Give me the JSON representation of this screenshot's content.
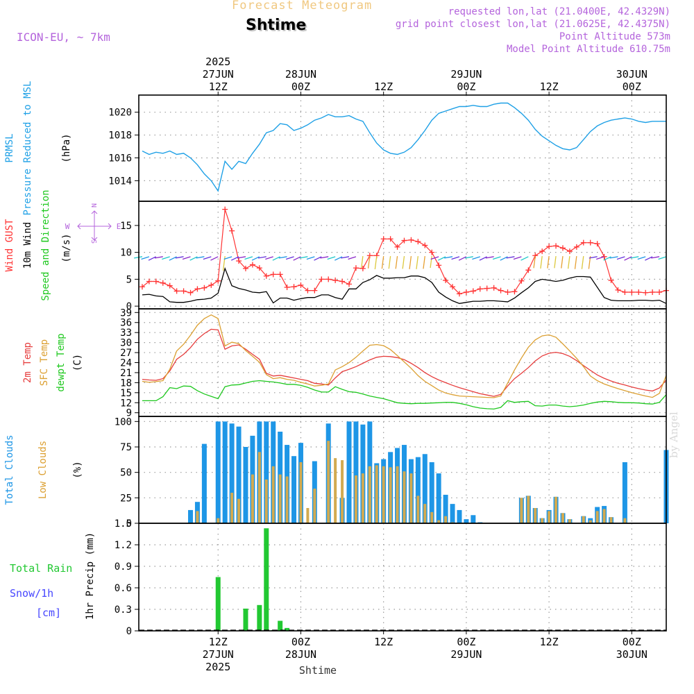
{
  "header": {
    "title": "Forecast Meteogram",
    "location": "Shtime",
    "model": "ICON-EU, ~ 7km",
    "requested": "requested lon,lat (21.0400E, 42.4329N)",
    "grid_point": "grid point closest lon,lat (21.0625E, 42.4375N)",
    "point_altitude": "Point Altitude 573m",
    "model_altitude": "Model Point Altitude 610.75m",
    "watermark": "by Angel"
  },
  "time_axis": {
    "top_ticks": [
      {
        "t": 1,
        "lines": [
          "2025",
          "27JUN",
          "12Z"
        ]
      },
      {
        "t": 13,
        "lines": [
          "28JUN",
          "00Z"
        ]
      },
      {
        "t": 25,
        "lines": [
          "12Z"
        ]
      },
      {
        "t": 37,
        "lines": [
          "29JUN",
          "00Z"
        ]
      },
      {
        "t": 49,
        "lines": [
          "12Z"
        ]
      },
      {
        "t": 61,
        "lines": [
          "30JUN",
          "00Z"
        ]
      }
    ],
    "bottom_ticks": [
      {
        "t": 1,
        "lines": [
          "12Z",
          "27JUN",
          "2025"
        ]
      },
      {
        "t": 13,
        "lines": [
          "00Z",
          "28JUN"
        ]
      },
      {
        "t": 25,
        "lines": [
          "12Z"
        ]
      },
      {
        "t": 37,
        "lines": [
          "00Z",
          "29JUN"
        ]
      },
      {
        "t": 49,
        "lines": [
          "12Z"
        ]
      },
      {
        "t": 61,
        "lines": [
          "00Z",
          "30JUN"
        ]
      }
    ],
    "bottom_label": "Shtime",
    "range_hours": [
      -10.5,
      66
    ]
  },
  "colors": {
    "pressure": "#1ea0e6",
    "gust": "#ff3232",
    "wind": "#000000",
    "temp2m": "#e63c3c",
    "sfc_temp": "#dca032",
    "dewpt": "#1ec81e",
    "total_clouds": "#1e96e6",
    "low_clouds": "#d2aa50",
    "rain": "#22c832",
    "snow": "#4646ff",
    "compass": "#b464dc"
  },
  "chart_data": [
    {
      "type": "line",
      "panel": "pressure",
      "labels": [
        "PRMSL",
        "Pressure Reduced to MSL"
      ],
      "unit": "(hPa)",
      "ylim": [
        1012.2,
        1021.5
      ],
      "yticks": [
        1014,
        1016,
        1018,
        1020
      ],
      "x": [
        -10,
        -9,
        -8,
        -7,
        -6,
        -5,
        -4,
        -3,
        -2,
        -1,
        0,
        1,
        2,
        3,
        4,
        5,
        6,
        7,
        8,
        9,
        10,
        11,
        12,
        13,
        14,
        15,
        16,
        17,
        18,
        19,
        20,
        21,
        22,
        23,
        24,
        25,
        26,
        27,
        28,
        29,
        30,
        31,
        32,
        33,
        34,
        35,
        36,
        37,
        38,
        39,
        40,
        41,
        42,
        43,
        44,
        45,
        46,
        47,
        48,
        49,
        50,
        51,
        52,
        53,
        54,
        55,
        56,
        57,
        58,
        59,
        60,
        61,
        62,
        63,
        64,
        65,
        66
      ],
      "series": [
        {
          "name": "PRMSL",
          "values": [
            1016.6,
            1016.3,
            1016.5,
            1016.4,
            1016.6,
            1016.3,
            1016.4,
            1016.0,
            1015.4,
            1014.6,
            1014.0,
            1013.1,
            1015.7,
            1015.0,
            1015.7,
            1015.5,
            1016.4,
            1017.2,
            1018.2,
            1018.4,
            1019.0,
            1018.9,
            1018.4,
            1018.6,
            1018.9,
            1019.3,
            1019.5,
            1019.8,
            1019.6,
            1019.6,
            1019.7,
            1019.4,
            1019.2,
            1018.2,
            1017.3,
            1016.7,
            1016.4,
            1016.3,
            1016.5,
            1016.9,
            1017.6,
            1018.4,
            1019.3,
            1019.9,
            1020.1,
            1020.3,
            1020.5,
            1020.5,
            1020.6,
            1020.5,
            1020.5,
            1020.7,
            1020.8,
            1020.8,
            1020.4,
            1019.9,
            1019.3,
            1018.5,
            1017.9,
            1017.5,
            1017.1,
            1016.8,
            1016.7,
            1016.9,
            1017.6,
            1018.3,
            1018.8,
            1019.1,
            1019.3,
            1019.4,
            1019.5,
            1019.4,
            1019.2,
            1019.1,
            1019.2,
            1019.2,
            1019.2
          ]
        }
      ]
    },
    {
      "type": "line",
      "panel": "wind",
      "labels": [
        "Wind GUST",
        "10m Wind",
        "Speed and Direction"
      ],
      "unit": "(m/s)",
      "ylim": [
        -0.5,
        19.5
      ],
      "yticks": [
        0,
        5,
        10,
        15
      ],
      "compass": [
        "N",
        "S",
        "W",
        "E"
      ],
      "x": [
        -10,
        -9,
        -8,
        -7,
        -6,
        -5,
        -4,
        -3,
        -2,
        -1,
        0,
        1,
        2,
        3,
        4,
        5,
        6,
        7,
        8,
        9,
        10,
        11,
        12,
        13,
        14,
        15,
        16,
        17,
        18,
        19,
        20,
        21,
        22,
        23,
        24,
        25,
        26,
        27,
        28,
        29,
        30,
        31,
        32,
        33,
        34,
        35,
        36,
        37,
        38,
        39,
        40,
        41,
        42,
        43,
        44,
        45,
        46,
        47,
        48,
        49,
        50,
        51,
        52,
        53,
        54,
        55,
        56,
        57,
        58,
        59,
        60,
        61,
        62,
        63,
        64,
        65,
        66
      ],
      "series": [
        {
          "name": "Wind GUST",
          "values": [
            3.6,
            4.6,
            4.6,
            4.3,
            3.8,
            2.8,
            2.8,
            2.5,
            3.2,
            3.4,
            3.9,
            4.7,
            18.0,
            14.0,
            8.4,
            7.0,
            7.7,
            7.1,
            5.6,
            5.9,
            5.9,
            3.5,
            3.6,
            3.9,
            2.9,
            2.9,
            5.0,
            5.0,
            4.8,
            4.6,
            4.1,
            7.1,
            7.0,
            9.4,
            9.4,
            12.5,
            12.5,
            11.0,
            12.2,
            12.3,
            12.0,
            11.3,
            10.0,
            7.6,
            4.8,
            3.6,
            2.3,
            2.6,
            2.8,
            3.2,
            3.3,
            3.4,
            2.9,
            2.6,
            2.7,
            4.7,
            6.7,
            9.4,
            10.2,
            11.1,
            11.2,
            10.8,
            10.2,
            11.0,
            11.8,
            11.8,
            11.6,
            9.2,
            4.8,
            3.0,
            2.6,
            2.6,
            2.6,
            2.5,
            2.6,
            2.6,
            2.9
          ]
        },
        {
          "name": "10m Wind",
          "values": [
            2.1,
            2.2,
            1.9,
            1.8,
            0.8,
            0.7,
            0.7,
            0.9,
            1.2,
            1.3,
            1.5,
            2.4,
            7.0,
            3.8,
            3.3,
            3.0,
            2.6,
            2.5,
            2.7,
            0.6,
            1.5,
            1.5,
            1.1,
            1.4,
            1.6,
            1.6,
            2.1,
            2.1,
            1.6,
            1.3,
            3.2,
            3.2,
            4.4,
            4.9,
            5.7,
            5.2,
            5.2,
            5.3,
            5.3,
            5.6,
            5.6,
            5.3,
            4.4,
            2.6,
            1.7,
            1.0,
            0.5,
            0.7,
            0.9,
            0.9,
            1.0,
            1.0,
            0.9,
            0.8,
            1.5,
            2.5,
            3.4,
            4.6,
            5.0,
            4.8,
            4.6,
            4.8,
            5.2,
            5.5,
            5.5,
            5.4,
            3.5,
            1.6,
            1.1,
            1.0,
            1.0,
            1.0,
            1.1,
            1.1,
            1.0,
            1.1,
            0.5
          ]
        }
      ]
    },
    {
      "type": "line",
      "panel": "temperature",
      "labels": [
        "2m Temp",
        "SFC Temp",
        "dewpt Temp"
      ],
      "unit": "(C)",
      "ylim": [
        7.9,
        40.1
      ],
      "yticks": [
        9,
        12,
        15,
        18,
        21,
        24,
        27,
        30,
        33,
        36,
        39
      ],
      "x": [
        -10,
        -9,
        -8,
        -7,
        -6,
        -5,
        -4,
        -3,
        -2,
        -1,
        0,
        1,
        2,
        3,
        4,
        5,
        6,
        7,
        8,
        9,
        10,
        11,
        12,
        13,
        14,
        15,
        16,
        17,
        18,
        19,
        20,
        21,
        22,
        23,
        24,
        25,
        26,
        27,
        28,
        29,
        30,
        31,
        32,
        33,
        34,
        35,
        36,
        37,
        38,
        39,
        40,
        41,
        42,
        43,
        44,
        45,
        46,
        47,
        48,
        49,
        50,
        51,
        52,
        53,
        54,
        55,
        56,
        57,
        58,
        59,
        60,
        61,
        62,
        63,
        64,
        65,
        66
      ],
      "series": [
        {
          "name": "2m Temp",
          "values": [
            19.0,
            18.8,
            18.7,
            19.2,
            21.5,
            25.0,
            26.5,
            28.5,
            31.0,
            32.7,
            34.0,
            33.8,
            28.0,
            29.0,
            29.3,
            28.0,
            26.5,
            25.0,
            20.8,
            20.0,
            20.2,
            19.8,
            19.4,
            19.0,
            18.6,
            17.8,
            17.6,
            17.3,
            19.4,
            21.3,
            22.0,
            22.8,
            23.8,
            24.8,
            25.6,
            25.9,
            25.8,
            25.5,
            24.9,
            23.8,
            22.5,
            21.0,
            19.8,
            18.8,
            18.0,
            17.2,
            16.5,
            15.9,
            15.3,
            14.7,
            14.3,
            13.9,
            14.5,
            17.0,
            19.2,
            20.8,
            22.5,
            24.5,
            26.0,
            26.8,
            27.1,
            26.7,
            25.9,
            24.6,
            23.1,
            21.7,
            20.3,
            19.3,
            18.5,
            17.8,
            17.3,
            16.7,
            16.2,
            15.8,
            15.5,
            16.4,
            18.8
          ]
        },
        {
          "name": "SFC Temp",
          "values": [
            18.4,
            18.1,
            18.3,
            18.6,
            22.0,
            27.5,
            29.5,
            32.2,
            35.2,
            37.2,
            38.3,
            37.2,
            29.0,
            30.1,
            29.7,
            27.6,
            25.9,
            24.1,
            20.4,
            19.2,
            19.5,
            19.0,
            18.7,
            18.1,
            17.6,
            17.0,
            17.2,
            17.6,
            21.8,
            22.8,
            24.0,
            25.6,
            27.5,
            29.2,
            29.4,
            29.1,
            27.9,
            26.1,
            24.2,
            22.3,
            20.1,
            18.4,
            17.1,
            15.8,
            14.9,
            14.4,
            14.0,
            13.9,
            13.8,
            13.7,
            13.6,
            13.5,
            14.0,
            17.9,
            21.8,
            25.4,
            28.6,
            30.8,
            32.0,
            32.3,
            31.6,
            29.6,
            27.5,
            25.3,
            22.8,
            20.0,
            18.6,
            17.6,
            16.9,
            16.2,
            15.6,
            15.0,
            14.5,
            14.0,
            13.6,
            14.8,
            20.2
          ]
        },
        {
          "name": "dewpt Temp",
          "values": [
            12.6,
            12.6,
            12.6,
            13.8,
            16.5,
            16.2,
            17.0,
            16.9,
            15.6,
            14.6,
            13.9,
            13.2,
            16.8,
            17.3,
            17.4,
            17.9,
            18.4,
            18.6,
            18.4,
            18.2,
            17.9,
            17.5,
            17.5,
            17.2,
            16.6,
            15.8,
            15.2,
            15.2,
            16.8,
            16.0,
            15.3,
            15.1,
            14.6,
            14.0,
            13.6,
            13.2,
            12.6,
            12.0,
            11.8,
            11.7,
            11.8,
            11.8,
            11.9,
            12.0,
            12.1,
            12.1,
            11.8,
            11.4,
            10.8,
            10.4,
            10.2,
            10.1,
            10.6,
            12.6,
            12.1,
            12.3,
            12.4,
            11.1,
            11.0,
            11.3,
            11.3,
            11.0,
            10.8,
            11.0,
            11.3,
            11.8,
            12.2,
            12.4,
            12.3,
            12.1,
            12.0,
            12.0,
            11.9,
            11.7,
            11.6,
            12.1,
            14.4
          ]
        }
      ]
    },
    {
      "type": "bar",
      "panel": "clouds",
      "labels": [
        "Total Clouds",
        "Low Clouds"
      ],
      "unit": "(%)",
      "ylim": [
        0,
        105
      ],
      "yticks": [
        0,
        25,
        50,
        75,
        100
      ],
      "x": [
        -3,
        -2,
        -1,
        0,
        1,
        2,
        3,
        4,
        5,
        6,
        7,
        8,
        9,
        10,
        11,
        12,
        13,
        14,
        15,
        16,
        17,
        18,
        19,
        20,
        21,
        22,
        23,
        24,
        25,
        26,
        27,
        28,
        29,
        30,
        31,
        32,
        33,
        34,
        35,
        36,
        37,
        38,
        39,
        40,
        41,
        42,
        43,
        44,
        45,
        46,
        47,
        48,
        49,
        50,
        51,
        52,
        53,
        54,
        55,
        56,
        57,
        58,
        59,
        60,
        61,
        62,
        63,
        64,
        65,
        66
      ],
      "series": [
        {
          "name": "Total Clouds",
          "values": [
            13,
            21,
            78,
            0,
            100,
            100,
            98,
            95,
            75,
            86,
            100,
            100,
            100,
            90,
            77,
            66,
            79,
            0,
            61,
            0,
            98,
            0,
            25,
            100,
            100,
            97,
            100,
            59,
            63,
            70,
            74,
            77,
            63,
            65,
            68,
            60,
            49,
            28,
            19,
            13,
            4,
            8,
            1,
            0,
            0,
            0,
            0,
            0,
            25,
            27,
            15,
            5,
            13,
            26,
            10,
            4,
            0,
            7,
            5,
            16,
            17,
            6,
            0,
            60,
            0,
            0,
            0,
            0,
            0,
            72
          ]
        },
        {
          "name": "Low Clouds",
          "values": [
            0,
            12,
            0,
            0,
            5,
            0,
            30,
            24,
            0,
            48,
            70,
            43,
            56,
            48,
            46,
            0,
            60,
            15,
            34,
            0,
            81,
            64,
            62,
            0,
            47,
            49,
            56,
            57,
            56,
            55,
            56,
            51,
            49,
            27,
            19,
            11,
            3,
            7,
            1,
            0,
            0,
            0,
            0,
            0,
            0,
            0,
            0,
            0,
            25,
            27,
            15,
            5,
            12,
            26,
            10,
            4,
            0,
            7,
            3,
            12,
            14,
            6,
            0,
            5,
            0,
            0,
            0,
            0,
            0,
            0
          ]
        }
      ]
    },
    {
      "type": "bar",
      "panel": "precip",
      "labels": [
        "Total  Rain",
        "Snow/1h",
        "[cm]"
      ],
      "unit": "1hr Precip (mm)",
      "ylim": [
        0,
        1.5
      ],
      "yticks": [
        0,
        0.3,
        0.6,
        0.9,
        1.2,
        1.5
      ],
      "x": [
        1,
        2,
        3,
        4,
        5,
        6,
        7,
        8,
        9,
        10,
        11
      ],
      "series": [
        {
          "name": "Total Rain",
          "values": [
            0.75,
            0.0,
            0.0,
            0.0,
            0.31,
            0.0,
            0.36,
            1.43,
            0.01,
            0.14,
            0.04
          ]
        }
      ]
    }
  ]
}
